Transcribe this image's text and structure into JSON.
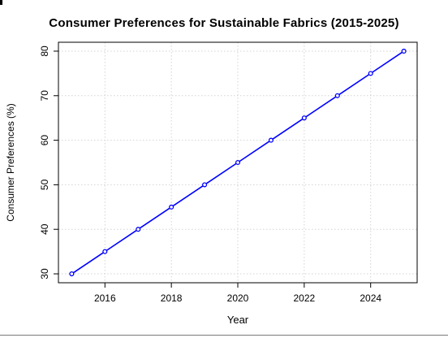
{
  "chart_data": {
    "type": "line",
    "title": "Consumer Preferences for Sustainable Fabrics (2015-2025)",
    "xlabel": "Year",
    "ylabel": "Consumer Preferences (%)",
    "x": [
      2015,
      2016,
      2017,
      2018,
      2019,
      2020,
      2021,
      2022,
      2023,
      2024,
      2025
    ],
    "series": [
      {
        "values": [
          30,
          35,
          40,
          45,
          50,
          55,
          60,
          65,
          70,
          75,
          80
        ],
        "color": "#0000ff"
      }
    ],
    "xlim": [
      2014.6,
      2025.4
    ],
    "ylim": [
      28,
      82
    ],
    "xticks": [
      2016,
      2018,
      2020,
      2022,
      2024
    ],
    "yticks": [
      30,
      40,
      50,
      60,
      70,
      80
    ],
    "grid": true,
    "marker": "open-circle",
    "legend": "none"
  }
}
